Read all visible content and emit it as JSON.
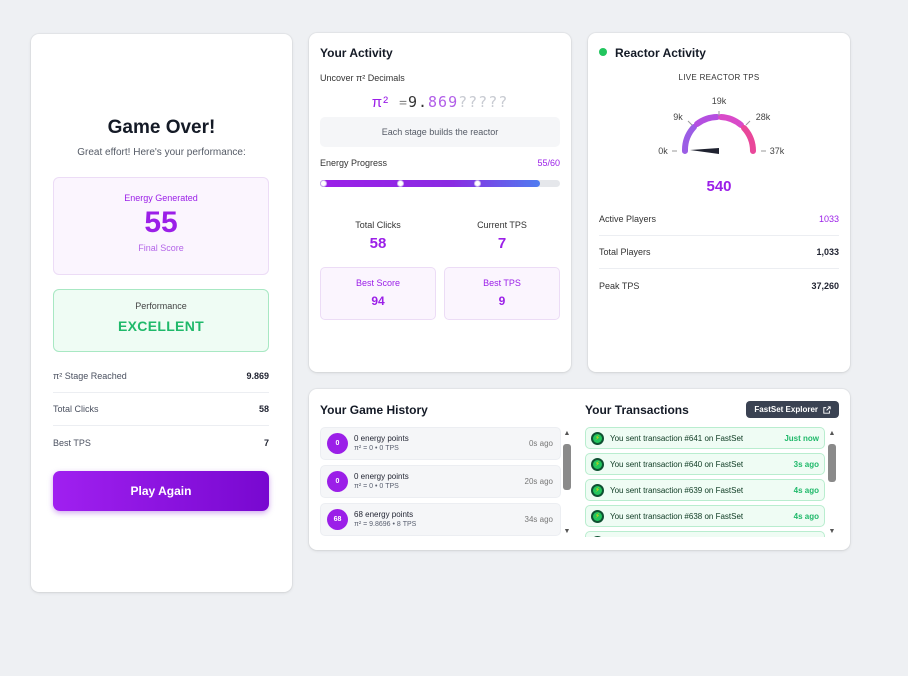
{
  "game_over": {
    "title": "Game Over!",
    "subtitle": "Great effort! Here's your performance:",
    "energy_label": "Energy Generated",
    "energy_value": "55",
    "final_score_label": "Final Score",
    "performance_label": "Performance",
    "performance_value": "EXCELLENT",
    "stats": [
      {
        "label": "π² Stage Reached",
        "value": "9.869"
      },
      {
        "label": "Total Clicks",
        "value": "58"
      },
      {
        "label": "Best TPS",
        "value": "7"
      }
    ],
    "play_again_label": "Play Again"
  },
  "activity": {
    "title": "Your Activity",
    "uncover_label": "Uncover π² Decimals",
    "pi_symbol": "π²",
    "pi_eq": "=",
    "pi_known": "9.",
    "pi_new": "869",
    "pi_unknown": "?????",
    "stage_note": "Each stage builds the reactor",
    "energy_progress_label": "Energy Progress",
    "energy_progress_value": "55/60",
    "energy_progress_fraction": 0.917,
    "total_clicks_label": "Total Clicks",
    "total_clicks": "58",
    "current_tps_label": "Current TPS",
    "current_tps": "7",
    "best_score_label": "Best Score",
    "best_score": "94",
    "best_tps_label": "Best TPS",
    "best_tps": "9"
  },
  "reactor": {
    "title": "Reactor Activity",
    "live_label": "LIVE REACTOR TPS",
    "gauge_ticks": [
      "0k",
      "9k",
      "19k",
      "28k",
      "37k"
    ],
    "gauge_value": "540",
    "rows": [
      {
        "label": "Active Players",
        "value": "1033"
      },
      {
        "label": "Total Players",
        "value": "1,033"
      },
      {
        "label": "Peak TPS",
        "value": "37,260"
      }
    ]
  },
  "history": {
    "title": "Your Game History",
    "items": [
      {
        "badge": "0",
        "main": "0 energy points",
        "sub": "π² = 0 • 0 TPS",
        "time": "0s ago"
      },
      {
        "badge": "0",
        "main": "0 energy points",
        "sub": "π² = 0 • 0 TPS",
        "time": "20s ago"
      },
      {
        "badge": "68",
        "main": "68 energy points",
        "sub": "π² = 9.8696 • 8 TPS",
        "time": "34s ago"
      }
    ]
  },
  "transactions": {
    "title": "Your Transactions",
    "explorer_label": "FastSet Explorer",
    "items": [
      {
        "text": "You sent transaction #641 on FastSet",
        "time": "Just now"
      },
      {
        "text": "You sent transaction #640 on FastSet",
        "time": "3s ago"
      },
      {
        "text": "You sent transaction #639 on FastSet",
        "time": "4s ago"
      },
      {
        "text": "You sent transaction #638 on FastSet",
        "time": "4s ago"
      }
    ]
  },
  "colors": {
    "accent": "#9b1fe8",
    "success": "#1fb96a",
    "live": "#22c55e"
  }
}
